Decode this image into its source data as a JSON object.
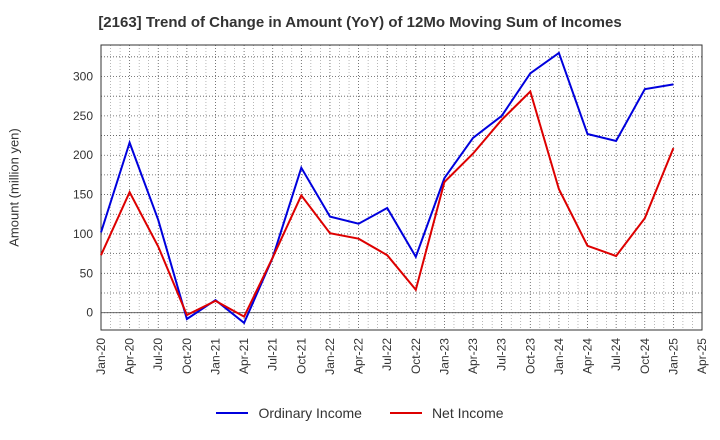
{
  "chart_data": {
    "type": "line",
    "title": "[2163]  Trend of Change in Amount (YoY) of 12Mo Moving Sum of Incomes",
    "ylabel": "Amount (million yen)",
    "xlabel": "",
    "ylim": [
      -22,
      340
    ],
    "yticks": [
      0,
      50,
      100,
      150,
      200,
      250,
      300
    ],
    "categories": [
      "Jan-20",
      "Apr-20",
      "Jul-20",
      "Oct-20",
      "Jan-21",
      "Apr-21",
      "Jul-21",
      "Oct-21",
      "Jan-22",
      "Apr-22",
      "Jul-22",
      "Oct-22",
      "Jan-23",
      "Apr-23",
      "Jul-23",
      "Oct-23",
      "Jan-24",
      "Apr-24",
      "Jul-24",
      "Oct-24",
      "Jan-25",
      "Apr-25"
    ],
    "grid": true,
    "legend_position": "bottom",
    "series": [
      {
        "name": "Ordinary Income",
        "color": "#0000dd",
        "values": [
          102,
          216,
          118,
          -8,
          16,
          -13,
          70,
          184,
          122,
          113,
          133,
          71,
          171,
          222,
          250,
          304,
          330,
          227,
          218,
          284,
          290,
          null
        ]
      },
      {
        "name": "Net Income",
        "color": "#dd0000",
        "values": [
          73,
          153,
          84,
          -3,
          15,
          -5,
          70,
          149,
          101,
          94,
          73,
          29,
          166,
          202,
          245,
          281,
          157,
          85,
          72,
          120,
          209,
          null
        ]
      }
    ]
  }
}
